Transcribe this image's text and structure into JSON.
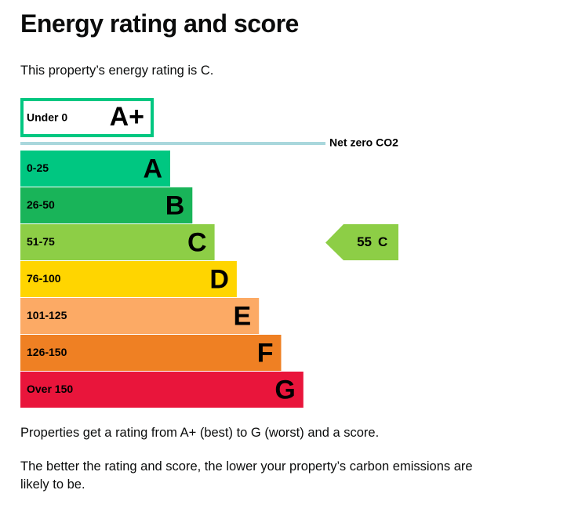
{
  "header": {
    "title": "Energy rating and score"
  },
  "intro": "This property’s energy rating is C.",
  "top_band": {
    "range": "Under 0",
    "letter": "A+",
    "color": "#00c781"
  },
  "net_zero": {
    "label": "Net zero CO2",
    "color": "#a9d7dc"
  },
  "bands": [
    {
      "range": "0-25",
      "letter": "A",
      "color": "#00c781"
    },
    {
      "range": "26-50",
      "letter": "B",
      "color": "#19b459"
    },
    {
      "range": "51-75",
      "letter": "C",
      "color": "#8dce46"
    },
    {
      "range": "76-100",
      "letter": "D",
      "color": "#ffd500"
    },
    {
      "range": "101-125",
      "letter": "E",
      "color": "#fcaa65"
    },
    {
      "range": "126-150",
      "letter": "F",
      "color": "#ef8023"
    },
    {
      "range": "Over 150",
      "letter": "G",
      "color": "#e9153b"
    }
  ],
  "current": {
    "score": 55,
    "letter": "C",
    "band_index": 2
  },
  "notes": [
    "Properties get a rating from A+ (best) to G (worst) and a score.",
    "The better the rating and score, the lower your property’s carbon emissions are likely to be."
  ]
}
